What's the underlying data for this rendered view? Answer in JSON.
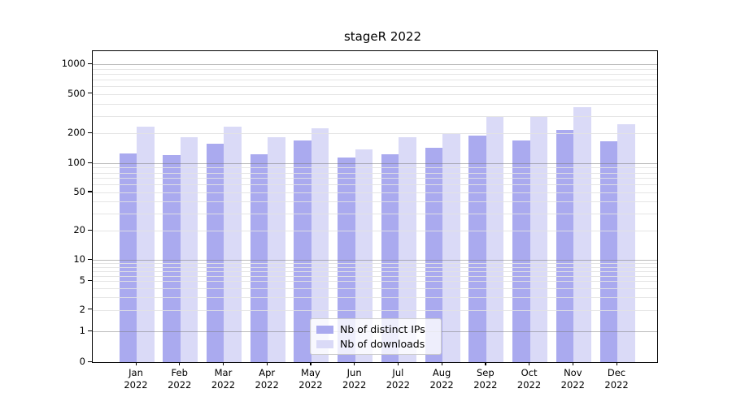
{
  "figure": {
    "title": "stageR 2022"
  },
  "legend": {
    "items": [
      {
        "label": "Nb of distinct IPs",
        "color": "#aaaaef"
      },
      {
        "label": "Nb of downloads",
        "color": "#dadaf7"
      }
    ]
  },
  "chart_data": {
    "type": "bar",
    "title": "stageR 2022",
    "categories": [
      "Jan",
      "Feb",
      "Mar",
      "Apr",
      "May",
      "Jun",
      "Jul",
      "Aug",
      "Sep",
      "Oct",
      "Nov",
      "Dec"
    ],
    "year": "2022",
    "series": [
      {
        "name": "Nb of distinct IPs",
        "color": "#aaaaef",
        "values": [
          126,
          121,
          156,
          124,
          171,
          114,
          124,
          143,
          189,
          169,
          217,
          165
        ]
      },
      {
        "name": "Nb of downloads",
        "color": "#dadaf7",
        "values": [
          235,
          182,
          232,
          182,
          225,
          139,
          182,
          197,
          295,
          300,
          368,
          248
        ]
      }
    ],
    "ylabel": "",
    "xlabel": "",
    "yscale": "log above 1, linear 0-1 (symlog-like)",
    "yticks": [
      0,
      1,
      2,
      5,
      10,
      20,
      50,
      100,
      200,
      500,
      1000
    ],
    "ylim": [
      0,
      1400
    ],
    "grid": "horizontal, major and minor, drawn over bars",
    "legend_position": "lower center inside axes"
  }
}
